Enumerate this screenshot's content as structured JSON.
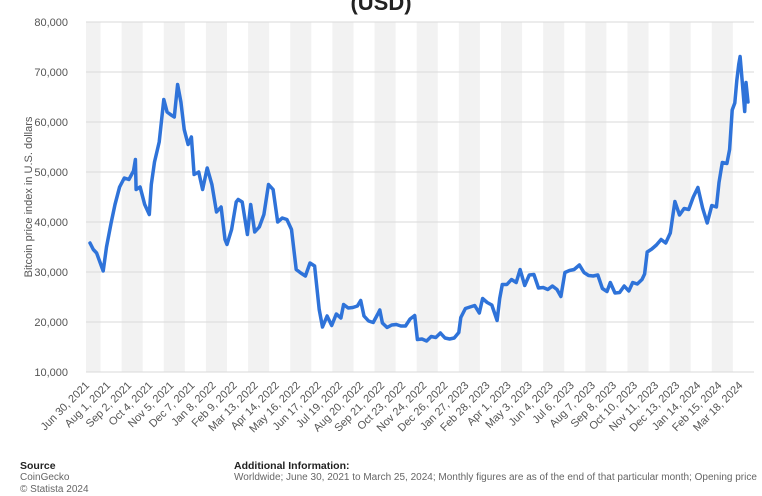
{
  "title_fragment": "(USD)",
  "chart_data": {
    "type": "line",
    "ylabel": "Bitcoin price index in U.S. dollars",
    "xlabel": "",
    "ylim": [
      10000,
      80000
    ],
    "yticks": [
      10000,
      20000,
      30000,
      40000,
      50000,
      60000,
      70000,
      80000
    ],
    "ytick_labels": [
      "10,000",
      "20,000",
      "30,000",
      "40,000",
      "50,000",
      "60,000",
      "70,000",
      "80,000"
    ],
    "grid": true,
    "x_range": [
      "2021-06-30",
      "2024-03-25"
    ],
    "x_tick_labels": [
      {
        "date": "2021-06-30",
        "label": "Jun 30, 2021"
      },
      {
        "date": "2021-08-01",
        "label": "Aug 1, 2021"
      },
      {
        "date": "2021-09-02",
        "label": "Sep 2, 2021"
      },
      {
        "date": "2021-10-04",
        "label": "Oct 4, 2021"
      },
      {
        "date": "2021-11-05",
        "label": "Nov 5, 2021"
      },
      {
        "date": "2021-12-07",
        "label": "Dec 7, 2021"
      },
      {
        "date": "2022-01-08",
        "label": "Jan 8, 2022"
      },
      {
        "date": "2022-02-09",
        "label": "Feb 9, 2022"
      },
      {
        "date": "2022-03-13",
        "label": "Mar 13, 2022"
      },
      {
        "date": "2022-04-14",
        "label": "Apr 14, 2022"
      },
      {
        "date": "2022-05-16",
        "label": "May 16, 2022"
      },
      {
        "date": "2022-06-17",
        "label": "Jun 17, 2022"
      },
      {
        "date": "2022-07-19",
        "label": "Jul 19, 2022"
      },
      {
        "date": "2022-08-20",
        "label": "Aug 20, 2022"
      },
      {
        "date": "2022-09-21",
        "label": "Sep 21, 2022"
      },
      {
        "date": "2022-10-23",
        "label": "Oct 23, 2022"
      },
      {
        "date": "2022-11-24",
        "label": "Nov 24, 2022"
      },
      {
        "date": "2022-12-26",
        "label": "Dec 26, 2022"
      },
      {
        "date": "2023-01-27",
        "label": "Jan 27, 2023"
      },
      {
        "date": "2023-02-28",
        "label": "Feb 28, 2023"
      },
      {
        "date": "2023-04-01",
        "label": "Apr 1, 2023"
      },
      {
        "date": "2023-05-03",
        "label": "May 3, 2023"
      },
      {
        "date": "2023-06-04",
        "label": "Jun 4, 2023"
      },
      {
        "date": "2023-07-06",
        "label": "Jul 6, 2023"
      },
      {
        "date": "2023-08-07",
        "label": "Aug 7, 2023"
      },
      {
        "date": "2023-09-08",
        "label": "Sep 8, 2023"
      },
      {
        "date": "2023-10-10",
        "label": "Oct 10, 2023"
      },
      {
        "date": "2023-11-11",
        "label": "Nov 11, 2023"
      },
      {
        "date": "2023-12-13",
        "label": "Dec 13, 2023"
      },
      {
        "date": "2024-01-14",
        "label": "Jan 14, 2024"
      },
      {
        "date": "2024-02-15",
        "label": "Feb 15, 2024"
      },
      {
        "date": "2024-03-18",
        "label": "Mar 18, 2024"
      }
    ],
    "series": [
      {
        "color": "#2f73d9",
        "points": [
          {
            "x": "2021-06-30",
            "y": 35800
          },
          {
            "x": "2021-07-05",
            "y": 34500
          },
          {
            "x": "2021-07-10",
            "y": 33800
          },
          {
            "x": "2021-07-15",
            "y": 32000
          },
          {
            "x": "2021-07-20",
            "y": 30200
          },
          {
            "x": "2021-07-25",
            "y": 35000
          },
          {
            "x": "2021-08-01",
            "y": 39800
          },
          {
            "x": "2021-08-07",
            "y": 43500
          },
          {
            "x": "2021-08-14",
            "y": 47000
          },
          {
            "x": "2021-08-21",
            "y": 48800
          },
          {
            "x": "2021-08-28",
            "y": 48500
          },
          {
            "x": "2021-09-04",
            "y": 50200
          },
          {
            "x": "2021-09-07",
            "y": 52500
          },
          {
            "x": "2021-09-08",
            "y": 46500
          },
          {
            "x": "2021-09-14",
            "y": 47000
          },
          {
            "x": "2021-09-21",
            "y": 43500
          },
          {
            "x": "2021-09-28",
            "y": 41500
          },
          {
            "x": "2021-10-01",
            "y": 47500
          },
          {
            "x": "2021-10-06",
            "y": 52000
          },
          {
            "x": "2021-10-13",
            "y": 56000
          },
          {
            "x": "2021-10-20",
            "y": 64500
          },
          {
            "x": "2021-10-25",
            "y": 62000
          },
          {
            "x": "2021-10-30",
            "y": 61500
          },
          {
            "x": "2021-11-05",
            "y": 61000
          },
          {
            "x": "2021-11-10",
            "y": 67500
          },
          {
            "x": "2021-11-15",
            "y": 64000
          },
          {
            "x": "2021-11-20",
            "y": 58500
          },
          {
            "x": "2021-11-26",
            "y": 55500
          },
          {
            "x": "2021-12-01",
            "y": 57000
          },
          {
            "x": "2021-12-05",
            "y": 49500
          },
          {
            "x": "2021-12-12",
            "y": 50000
          },
          {
            "x": "2021-12-18",
            "y": 46500
          },
          {
            "x": "2021-12-25",
            "y": 50800
          },
          {
            "x": "2022-01-01",
            "y": 47500
          },
          {
            "x": "2022-01-08",
            "y": 42000
          },
          {
            "x": "2022-01-15",
            "y": 43000
          },
          {
            "x": "2022-01-21",
            "y": 36500
          },
          {
            "x": "2022-01-24",
            "y": 35500
          },
          {
            "x": "2022-01-31",
            "y": 38500
          },
          {
            "x": "2022-02-07",
            "y": 44000
          },
          {
            "x": "2022-02-10",
            "y": 44500
          },
          {
            "x": "2022-02-16",
            "y": 44000
          },
          {
            "x": "2022-02-24",
            "y": 37500
          },
          {
            "x": "2022-03-01",
            "y": 43500
          },
          {
            "x": "2022-03-07",
            "y": 38000
          },
          {
            "x": "2022-03-14",
            "y": 39000
          },
          {
            "x": "2022-03-21",
            "y": 41500
          },
          {
            "x": "2022-03-28",
            "y": 47500
          },
          {
            "x": "2022-04-04",
            "y": 46500
          },
          {
            "x": "2022-04-11",
            "y": 40000
          },
          {
            "x": "2022-04-18",
            "y": 40800
          },
          {
            "x": "2022-04-25",
            "y": 40500
          },
          {
            "x": "2022-05-02",
            "y": 38500
          },
          {
            "x": "2022-05-09",
            "y": 30500
          },
          {
            "x": "2022-05-16",
            "y": 29800
          },
          {
            "x": "2022-05-23",
            "y": 29200
          },
          {
            "x": "2022-05-30",
            "y": 31800
          },
          {
            "x": "2022-06-06",
            "y": 31200
          },
          {
            "x": "2022-06-13",
            "y": 22500
          },
          {
            "x": "2022-06-18",
            "y": 19000
          },
          {
            "x": "2022-06-25",
            "y": 21200
          },
          {
            "x": "2022-07-02",
            "y": 19300
          },
          {
            "x": "2022-07-09",
            "y": 21600
          },
          {
            "x": "2022-07-16",
            "y": 20800
          },
          {
            "x": "2022-07-20",
            "y": 23500
          },
          {
            "x": "2022-07-27",
            "y": 22800
          },
          {
            "x": "2022-08-03",
            "y": 22900
          },
          {
            "x": "2022-08-10",
            "y": 23200
          },
          {
            "x": "2022-08-15",
            "y": 24300
          },
          {
            "x": "2022-08-20",
            "y": 21200
          },
          {
            "x": "2022-08-27",
            "y": 20200
          },
          {
            "x": "2022-09-03",
            "y": 19900
          },
          {
            "x": "2022-09-10",
            "y": 21600
          },
          {
            "x": "2022-09-13",
            "y": 22400
          },
          {
            "x": "2022-09-17",
            "y": 19800
          },
          {
            "x": "2022-09-24",
            "y": 18900
          },
          {
            "x": "2022-10-01",
            "y": 19400
          },
          {
            "x": "2022-10-08",
            "y": 19500
          },
          {
            "x": "2022-10-15",
            "y": 19200
          },
          {
            "x": "2022-10-22",
            "y": 19200
          },
          {
            "x": "2022-10-29",
            "y": 20600
          },
          {
            "x": "2022-11-05",
            "y": 21300
          },
          {
            "x": "2022-11-09",
            "y": 16500
          },
          {
            "x": "2022-11-16",
            "y": 16600
          },
          {
            "x": "2022-11-23",
            "y": 16200
          },
          {
            "x": "2022-11-30",
            "y": 17100
          },
          {
            "x": "2022-12-07",
            "y": 16900
          },
          {
            "x": "2022-12-14",
            "y": 17800
          },
          {
            "x": "2022-12-21",
            "y": 16800
          },
          {
            "x": "2022-12-28",
            "y": 16600
          },
          {
            "x": "2023-01-04",
            "y": 16800
          },
          {
            "x": "2023-01-11",
            "y": 17900
          },
          {
            "x": "2023-01-14",
            "y": 20900
          },
          {
            "x": "2023-01-21",
            "y": 22700
          },
          {
            "x": "2023-01-28",
            "y": 23000
          },
          {
            "x": "2023-02-04",
            "y": 23300
          },
          {
            "x": "2023-02-11",
            "y": 21800
          },
          {
            "x": "2023-02-16",
            "y": 24700
          },
          {
            "x": "2023-02-23",
            "y": 23900
          },
          {
            "x": "2023-03-02",
            "y": 23400
          },
          {
            "x": "2023-03-10",
            "y": 20300
          },
          {
            "x": "2023-03-14",
            "y": 24700
          },
          {
            "x": "2023-03-18",
            "y": 27500
          },
          {
            "x": "2023-03-25",
            "y": 27500
          },
          {
            "x": "2023-04-01",
            "y": 28500
          },
          {
            "x": "2023-04-08",
            "y": 27900
          },
          {
            "x": "2023-04-14",
            "y": 30500
          },
          {
            "x": "2023-04-21",
            "y": 27300
          },
          {
            "x": "2023-04-28",
            "y": 29400
          },
          {
            "x": "2023-05-05",
            "y": 29500
          },
          {
            "x": "2023-05-12",
            "y": 26800
          },
          {
            "x": "2023-05-19",
            "y": 26900
          },
          {
            "x": "2023-05-26",
            "y": 26500
          },
          {
            "x": "2023-06-02",
            "y": 27200
          },
          {
            "x": "2023-06-09",
            "y": 26500
          },
          {
            "x": "2023-06-15",
            "y": 25100
          },
          {
            "x": "2023-06-21",
            "y": 29900
          },
          {
            "x": "2023-06-28",
            "y": 30300
          },
          {
            "x": "2023-07-05",
            "y": 30500
          },
          {
            "x": "2023-07-13",
            "y": 31400
          },
          {
            "x": "2023-07-20",
            "y": 29900
          },
          {
            "x": "2023-07-27",
            "y": 29300
          },
          {
            "x": "2023-08-03",
            "y": 29200
          },
          {
            "x": "2023-08-10",
            "y": 29400
          },
          {
            "x": "2023-08-17",
            "y": 26700
          },
          {
            "x": "2023-08-24",
            "y": 26100
          },
          {
            "x": "2023-08-29",
            "y": 27900
          },
          {
            "x": "2023-09-05",
            "y": 25800
          },
          {
            "x": "2023-09-12",
            "y": 25900
          },
          {
            "x": "2023-09-19",
            "y": 27200
          },
          {
            "x": "2023-09-26",
            "y": 26200
          },
          {
            "x": "2023-10-02",
            "y": 27900
          },
          {
            "x": "2023-10-09",
            "y": 27600
          },
          {
            "x": "2023-10-16",
            "y": 28500
          },
          {
            "x": "2023-10-20",
            "y": 29600
          },
          {
            "x": "2023-10-24",
            "y": 34000
          },
          {
            "x": "2023-10-31",
            "y": 34600
          },
          {
            "x": "2023-11-07",
            "y": 35400
          },
          {
            "x": "2023-11-14",
            "y": 36500
          },
          {
            "x": "2023-11-21",
            "y": 35800
          },
          {
            "x": "2023-11-28",
            "y": 37800
          },
          {
            "x": "2023-12-05",
            "y": 44100
          },
          {
            "x": "2023-12-12",
            "y": 41400
          },
          {
            "x": "2023-12-19",
            "y": 42700
          },
          {
            "x": "2023-12-26",
            "y": 42500
          },
          {
            "x": "2024-01-02",
            "y": 45000
          },
          {
            "x": "2024-01-09",
            "y": 46900
          },
          {
            "x": "2024-01-16",
            "y": 42800
          },
          {
            "x": "2024-01-23",
            "y": 39800
          },
          {
            "x": "2024-01-30",
            "y": 43300
          },
          {
            "x": "2024-02-06",
            "y": 43000
          },
          {
            "x": "2024-02-10",
            "y": 47900
          },
          {
            "x": "2024-02-15",
            "y": 51900
          },
          {
            "x": "2024-02-22",
            "y": 51700
          },
          {
            "x": "2024-02-26",
            "y": 54500
          },
          {
            "x": "2024-03-01",
            "y": 62400
          },
          {
            "x": "2024-03-05",
            "y": 63800
          },
          {
            "x": "2024-03-08",
            "y": 68300
          },
          {
            "x": "2024-03-11",
            "y": 71600
          },
          {
            "x": "2024-03-13",
            "y": 73100
          },
          {
            "x": "2024-03-16",
            "y": 68400
          },
          {
            "x": "2024-03-20",
            "y": 62100
          },
          {
            "x": "2024-03-22",
            "y": 67900
          },
          {
            "x": "2024-03-25",
            "y": 64000
          }
        ]
      }
    ]
  },
  "footer": {
    "source_header": "Source",
    "source_name": "CoinGecko",
    "copyright": "© Statista 2024",
    "info_header": "Additional Information:",
    "info_text": "Worldwide; June 30, 2021 to March 25, 2024; Monthly figures are as of the end of that particular month; Opening price"
  }
}
